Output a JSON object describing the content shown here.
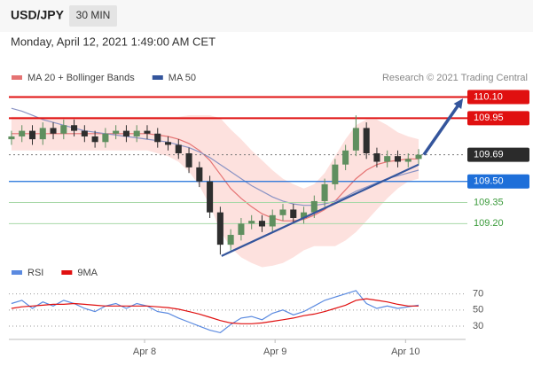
{
  "header": {
    "symbol": "USD/JPY",
    "interval": "30 MIN",
    "date": "Monday, April 12, 2021 1:49:00 AM CET",
    "credit": "Research © 2021 Trading Central"
  },
  "chart_data": [
    {
      "type": "candlestick",
      "xlim": [
        -0.04,
        3.46
      ],
      "ylim": [
        108.95,
        110.16
      ],
      "up_color": "#5f8f5f",
      "down_color": "#2e2e2e",
      "x": [
        -0.02,
        0.06,
        0.14,
        0.22,
        0.3,
        0.38,
        0.46,
        0.54,
        0.62,
        0.7,
        0.78,
        0.86,
        0.94,
        1.02,
        1.1,
        1.18,
        1.26,
        1.34,
        1.42,
        1.5,
        1.58,
        1.66,
        1.74,
        1.82,
        1.9,
        1.98,
        2.06,
        2.14,
        2.22,
        2.3,
        2.38,
        2.46,
        2.54,
        2.62,
        2.7,
        2.78,
        2.86,
        2.94,
        3.02,
        3.1
      ],
      "open": [
        109.8,
        109.82,
        109.86,
        109.8,
        109.88,
        109.84,
        109.9,
        109.86,
        109.82,
        109.78,
        109.84,
        109.86,
        109.82,
        109.86,
        109.84,
        109.78,
        109.76,
        109.7,
        109.6,
        109.5,
        109.28,
        109.05,
        109.12,
        109.2,
        109.22,
        109.18,
        109.26,
        109.3,
        109.24,
        109.28,
        109.36,
        109.48,
        109.62,
        109.72,
        109.88,
        109.7,
        109.64,
        109.68,
        109.64,
        109.66
      ],
      "high": [
        109.86,
        109.9,
        109.9,
        109.92,
        109.92,
        109.94,
        109.94,
        109.9,
        109.86,
        109.88,
        109.9,
        109.9,
        109.9,
        109.9,
        109.88,
        109.82,
        109.8,
        109.74,
        109.64,
        109.54,
        109.32,
        109.16,
        109.24,
        109.26,
        109.26,
        109.3,
        109.34,
        109.34,
        109.32,
        109.4,
        109.52,
        109.66,
        109.76,
        109.97,
        109.92,
        109.74,
        109.72,
        109.72,
        109.7,
        109.73
      ],
      "low": [
        109.76,
        109.78,
        109.76,
        109.76,
        109.8,
        109.8,
        109.82,
        109.78,
        109.74,
        109.74,
        109.8,
        109.78,
        109.78,
        109.8,
        109.74,
        109.72,
        109.66,
        109.56,
        109.46,
        109.24,
        108.98,
        109.01,
        109.08,
        109.16,
        109.14,
        109.14,
        109.22,
        109.2,
        109.2,
        109.24,
        109.32,
        109.44,
        109.58,
        109.68,
        109.66,
        109.6,
        109.6,
        109.6,
        109.6,
        109.62
      ],
      "close": [
        109.82,
        109.86,
        109.8,
        109.88,
        109.84,
        109.9,
        109.86,
        109.82,
        109.78,
        109.84,
        109.86,
        109.82,
        109.86,
        109.84,
        109.78,
        109.76,
        109.7,
        109.6,
        109.5,
        109.28,
        109.05,
        109.12,
        109.2,
        109.22,
        109.18,
        109.26,
        109.3,
        109.24,
        109.28,
        109.36,
        109.48,
        109.62,
        109.72,
        109.88,
        109.7,
        109.64,
        109.68,
        109.64,
        109.66,
        109.69
      ],
      "series": [
        {
          "name": "MA 20 + Bollinger Bands",
          "color": "#e57373",
          "band_color": "#fcd9d6",
          "values": [
            109.84,
            109.84,
            109.84,
            109.84,
            109.84,
            109.84,
            109.84,
            109.84,
            109.84,
            109.84,
            109.84,
            109.84,
            109.84,
            109.84,
            109.83,
            109.82,
            109.8,
            109.77,
            109.72,
            109.65,
            109.55,
            109.45,
            109.38,
            109.32,
            109.27,
            109.24,
            109.22,
            109.22,
            109.23,
            109.26,
            109.3,
            109.36,
            109.44,
            109.52,
            109.58,
            109.62,
            109.64,
            109.65,
            109.66,
            109.66
          ],
          "upper": [
            109.96,
            109.96,
            109.96,
            109.96,
            109.96,
            109.96,
            109.96,
            109.96,
            109.96,
            109.96,
            109.96,
            109.96,
            109.96,
            109.96,
            109.96,
            109.96,
            109.96,
            109.97,
            109.97,
            109.97,
            109.95,
            109.87,
            109.8,
            109.72,
            109.65,
            109.58,
            109.52,
            109.48,
            109.45,
            109.48,
            109.56,
            109.68,
            109.8,
            109.9,
            109.94,
            109.94,
            109.9,
            109.85,
            109.82,
            109.8
          ],
          "lower": [
            109.72,
            109.72,
            109.72,
            109.72,
            109.72,
            109.72,
            109.72,
            109.72,
            109.72,
            109.72,
            109.72,
            109.72,
            109.72,
            109.72,
            109.7,
            109.68,
            109.64,
            109.57,
            109.47,
            109.33,
            109.15,
            109.03,
            108.96,
            108.92,
            108.89,
            108.9,
            108.92,
            108.96,
            109.01,
            109.04,
            109.04,
            109.04,
            109.08,
            109.14,
            109.22,
            109.3,
            109.38,
            109.45,
            109.5,
            109.52
          ]
        },
        {
          "name": "MA 50",
          "color": "#8a93c4",
          "legend_color": "#34559c",
          "values": [
            110.02,
            110.0,
            109.97,
            109.94,
            109.92,
            109.9,
            109.88,
            109.86,
            109.85,
            109.84,
            109.83,
            109.82,
            109.81,
            109.8,
            109.79,
            109.78,
            109.76,
            109.74,
            109.71,
            109.67,
            109.62,
            109.57,
            109.52,
            109.47,
            109.43,
            109.39,
            109.36,
            109.34,
            109.33,
            109.33,
            109.34,
            109.36,
            109.39,
            109.43,
            109.46,
            109.49,
            109.52,
            109.54,
            109.56,
            109.58
          ]
        }
      ],
      "levels": [
        {
          "value": 110.1,
          "label": "110.10",
          "color": "#e01010",
          "style": "box"
        },
        {
          "value": 109.95,
          "label": "109.95",
          "color": "#e01010",
          "style": "box"
        },
        {
          "value": 109.69,
          "label": "109.69",
          "color": "#2b2b2b",
          "style": "dotted"
        },
        {
          "value": 109.5,
          "label": "109.50",
          "color": "#1e6fd9",
          "style": "box"
        },
        {
          "value": 109.35,
          "label": "109.35",
          "color": "#3a9a3a",
          "style": "text"
        },
        {
          "value": 109.2,
          "label": "109.20",
          "color": "#3a9a3a",
          "style": "text"
        }
      ],
      "trendline": {
        "x": [
          1.59,
          3.1
        ],
        "y": [
          108.97,
          109.62
        ],
        "color": "#34559c"
      },
      "arrow": {
        "x": [
          3.14,
          3.44
        ],
        "y": [
          109.69,
          110.09
        ],
        "color": "#34559c"
      }
    },
    {
      "type": "line",
      "xlim": [
        -0.04,
        3.46
      ],
      "ylim": [
        18,
        86
      ],
      "yticks": [
        30,
        50,
        70
      ],
      "xticks": [
        {
          "value": 1,
          "label": "Apr 8"
        },
        {
          "value": 2,
          "label": "Apr 9"
        },
        {
          "value": 3,
          "label": "Apr 10"
        }
      ],
      "x": [
        -0.02,
        0.06,
        0.14,
        0.22,
        0.3,
        0.38,
        0.46,
        0.54,
        0.62,
        0.7,
        0.78,
        0.86,
        0.94,
        1.02,
        1.1,
        1.18,
        1.26,
        1.34,
        1.42,
        1.5,
        1.58,
        1.66,
        1.74,
        1.82,
        1.9,
        1.98,
        2.06,
        2.14,
        2.22,
        2.3,
        2.38,
        2.46,
        2.54,
        2.62,
        2.7,
        2.78,
        2.86,
        2.94,
        3.02,
        3.1
      ],
      "series": [
        {
          "name": "RSI",
          "color": "#5b8ae0",
          "values": [
            58,
            62,
            52,
            60,
            55,
            62,
            58,
            52,
            48,
            55,
            58,
            52,
            58,
            55,
            48,
            46,
            40,
            35,
            30,
            25,
            22,
            32,
            40,
            42,
            38,
            46,
            50,
            44,
            48,
            55,
            62,
            66,
            70,
            74,
            58,
            52,
            55,
            52,
            54,
            56
          ]
        },
        {
          "name": "9MA",
          "color": "#e01010",
          "values": [
            52,
            54,
            55,
            56,
            57,
            57,
            58,
            57,
            56,
            55,
            55,
            55,
            55,
            55,
            54,
            53,
            51,
            48,
            45,
            41,
            37,
            34,
            33,
            33,
            34,
            36,
            38,
            40,
            43,
            45,
            48,
            52,
            56,
            62,
            64,
            62,
            60,
            57,
            55,
            55
          ]
        }
      ]
    }
  ]
}
